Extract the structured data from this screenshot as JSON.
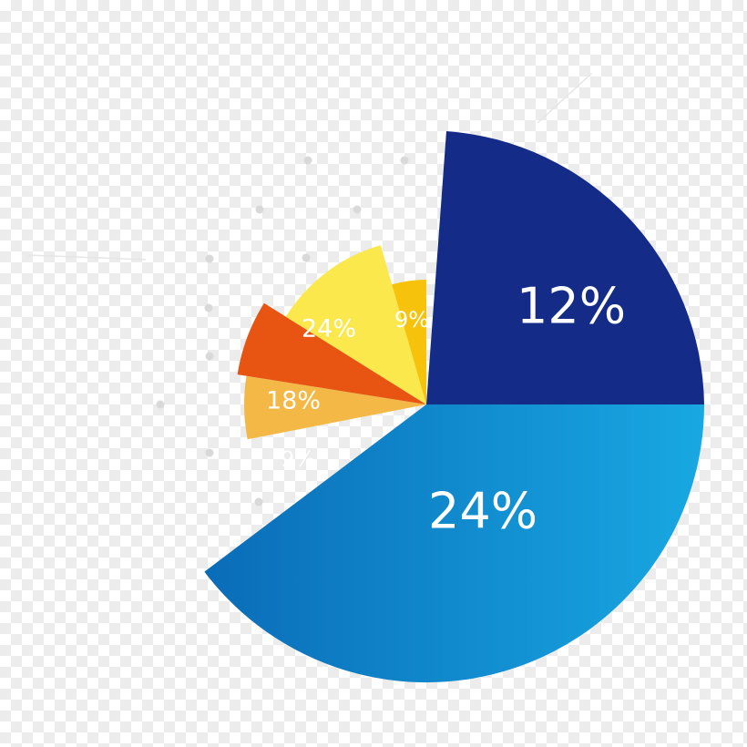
{
  "chart_data": {
    "type": "pie",
    "title": "",
    "slices": [
      {
        "label": "24%",
        "value": 24,
        "color": "#1a8fd0"
      },
      {
        "label": "12%",
        "value": 12,
        "color": "#142c88"
      },
      {
        "label": "9%",
        "value": 9,
        "color": "#f6c20c"
      },
      {
        "label": "24%",
        "value": 24,
        "color": "#fbe84c"
      },
      {
        "label": "18%",
        "value": 18,
        "color": "#e85512"
      },
      {
        "label": "9%",
        "value": 9,
        "color": "#f4b847"
      }
    ],
    "exploded_radius_style": "variable-radius segments",
    "legend": "none",
    "grid": false
  },
  "colors": {
    "blue_gradient_start": "#0a6cb8",
    "blue_gradient_end": "#18a8e2",
    "dots": "#d9d9d9"
  }
}
